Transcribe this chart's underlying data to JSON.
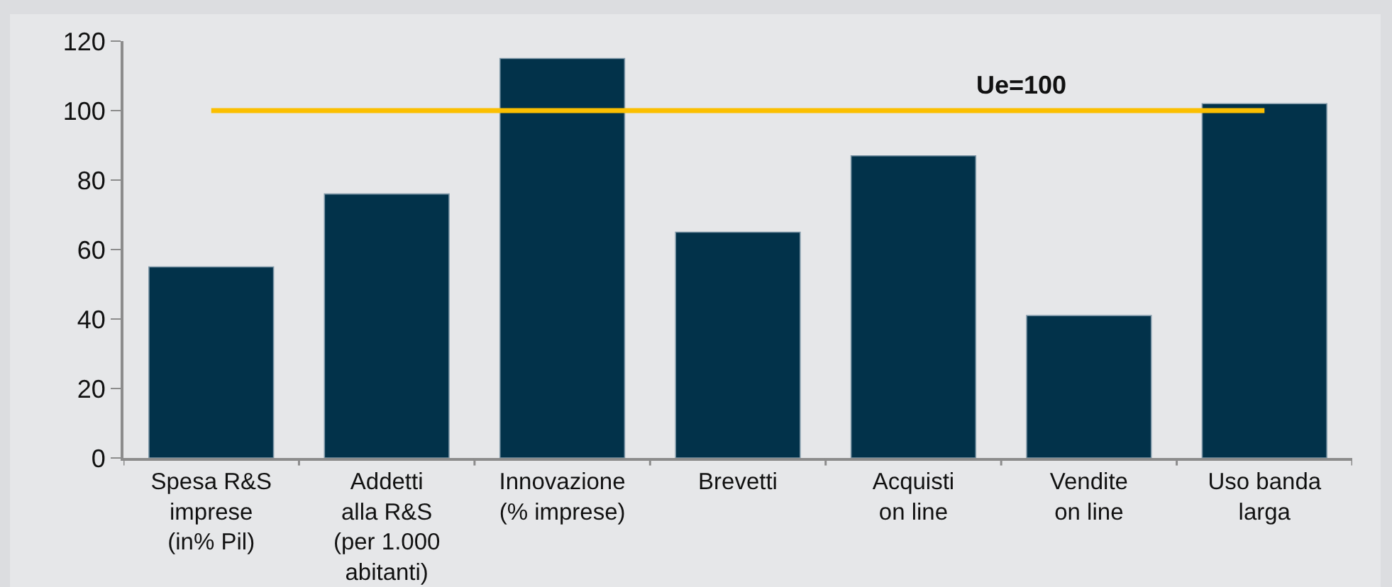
{
  "chart_data": {
    "type": "bar",
    "categories": [
      "Spesa R&S\nimprese\n(in% Pil)",
      "Addetti\nalla R&S\n(per 1.000\nabitanti)",
      "Innovazione\n(% imprese)",
      "Brevetti",
      "Acquisti\non line",
      "Vendite\non line",
      "Uso banda\nlarga"
    ],
    "values": [
      55,
      76,
      115,
      65,
      87,
      41,
      102
    ],
    "color": "#02324a",
    "ylim": [
      0,
      120
    ],
    "yticks": [
      0,
      20,
      40,
      60,
      80,
      100,
      120
    ],
    "ref_lines": [
      {
        "axis": "y",
        "value": 100,
        "label": "Ue=100",
        "color": "#fbbf00"
      }
    ]
  }
}
